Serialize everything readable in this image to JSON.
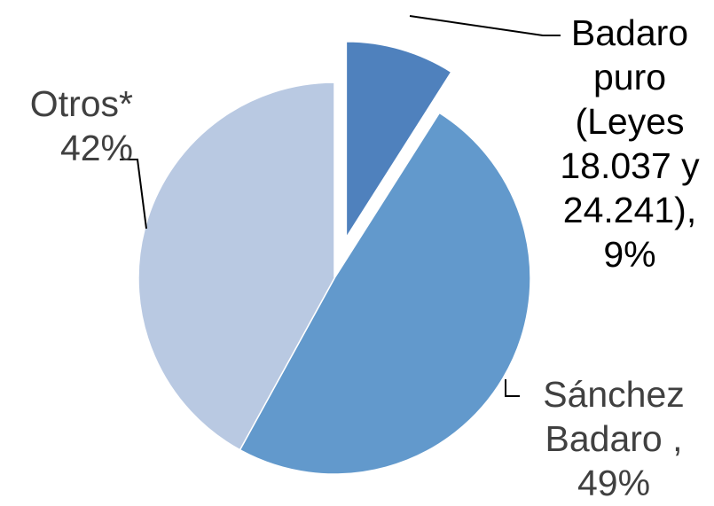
{
  "chart_data": {
    "type": "pie",
    "slices": [
      {
        "label": "Badaro puro (Leyes 18.037 y 24.241)",
        "value": 9,
        "color": "#4f81bd",
        "exploded": true
      },
      {
        "label": "Sánchez Badaro",
        "value": 49,
        "color": "#6299cc",
        "exploded": false
      },
      {
        "label": "Otros*",
        "value": 42,
        "color": "#b9c9e2",
        "exploded": false
      }
    ],
    "legend": "none",
    "labels": {
      "badaro": [
        "Badaro",
        "puro",
        "(Leyes",
        "18.037 y",
        "24.241),",
        "9%"
      ],
      "sanchez": [
        "Sánchez",
        "Badaro ,",
        "49%"
      ],
      "otros": [
        "Otros*",
        "42%"
      ]
    }
  }
}
